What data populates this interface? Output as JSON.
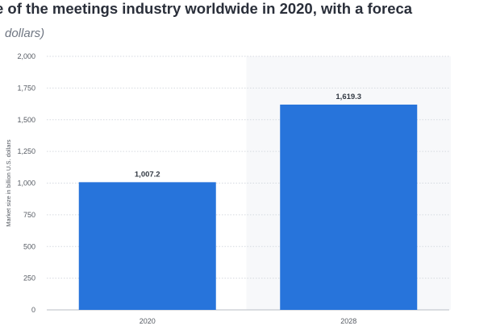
{
  "header": {
    "title": "e of the meetings industry worldwide in 2020, with a foreca",
    "subtitle": "dollars)"
  },
  "colors": {
    "bar": "#2774db",
    "grid": "#d6dae0",
    "highlight_band": "#f7f8fa"
  },
  "chart_data": {
    "type": "bar",
    "categories": [
      "2020",
      "2028"
    ],
    "values": [
      1007.2,
      1619.3
    ],
    "value_labels": [
      "1,007.2",
      "1,619.3"
    ],
    "ylabel": "Market size in billion U.S. dollars",
    "ylim": [
      0,
      2000
    ],
    "yticks": [
      0,
      250,
      500,
      750,
      1000,
      1250,
      1500,
      1750,
      2000
    ],
    "ytick_labels": [
      "0",
      "250",
      "500",
      "750",
      "1,000",
      "1,250",
      "1,500",
      "1,750",
      "2,000"
    ],
    "grid": true,
    "forecast_band": "2028"
  }
}
